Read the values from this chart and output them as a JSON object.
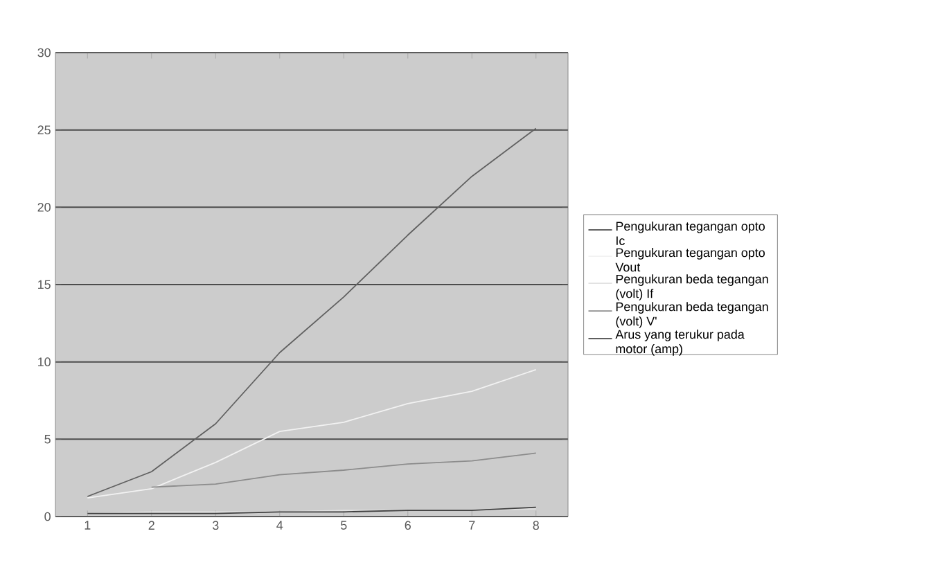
{
  "chart_data": {
    "type": "line",
    "categories": [
      "1",
      "2",
      "3",
      "4",
      "5",
      "6",
      "7",
      "8"
    ],
    "series": [
      {
        "name": "Pengukuran tegangan opto Ic",
        "color": "#606060",
        "values": [
          1.3,
          2.9,
          6.0,
          10.6,
          14.2,
          18.2,
          22.0,
          25.1
        ]
      },
      {
        "name": "Pengukuran tegangan opto Vout",
        "color": "#f2f2f2",
        "values": [
          1.2,
          1.8,
          3.5,
          5.5,
          6.1,
          7.3,
          8.1,
          9.5
        ]
      },
      {
        "name": "Pengukuran beda tegangan  (volt) If",
        "color": "#e2e2e2",
        "values": [
          0.2,
          0.3,
          0.3,
          0.3,
          0.4,
          0.4,
          0.4,
          0.5
        ]
      },
      {
        "name": "Pengukuran beda tegangan  (volt) V'",
        "color": "#8c8c8c",
        "values": [
          null,
          1.9,
          2.1,
          2.7,
          3.0,
          3.4,
          3.6,
          4.1
        ]
      },
      {
        "name": "Arus yang terukur pada motor (amp)",
        "color": "#404040",
        "values": [
          0.2,
          0.2,
          0.2,
          0.3,
          0.3,
          0.4,
          0.4,
          0.6
        ]
      }
    ],
    "ylim": [
      0,
      30
    ],
    "yticks": [
      0,
      5,
      10,
      15,
      20,
      25,
      30
    ],
    "grid": "y",
    "legend": "right",
    "marker": "none",
    "line_style": "solid"
  }
}
